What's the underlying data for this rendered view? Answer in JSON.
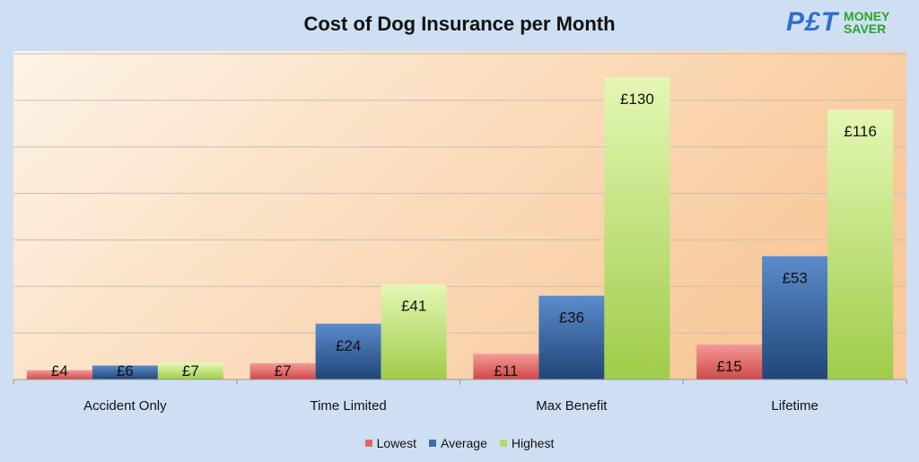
{
  "chart_data": {
    "type": "bar",
    "title": "Cost of Dog Insurance per Month",
    "categories": [
      "Accident Only",
      "Time Limited",
      "Max Benefit",
      "Lifetime"
    ],
    "series": [
      {
        "name": "Lowest",
        "color": "#e06666",
        "values": [
          4,
          7,
          11,
          15
        ],
        "labels": [
          "£4",
          "£7",
          "£11",
          "£15"
        ]
      },
      {
        "name": "Average",
        "color": "#3a6ea8",
        "values": [
          6,
          24,
          36,
          53
        ],
        "labels": [
          "£6",
          "£24",
          "£36",
          "£53"
        ]
      },
      {
        "name": "Highest",
        "color": "#b5dc64",
        "values": [
          7,
          41,
          130,
          116
        ],
        "labels": [
          "£7",
          "£41",
          "£130",
          "£116"
        ]
      }
    ],
    "xlabel": "",
    "ylabel": "",
    "ylim": [
      0,
      140
    ],
    "grid_step": 20,
    "grid": true,
    "legend": "bottom"
  },
  "logo": {
    "pet": "P£T",
    "money": "MONEY",
    "saver": "SAVER"
  }
}
